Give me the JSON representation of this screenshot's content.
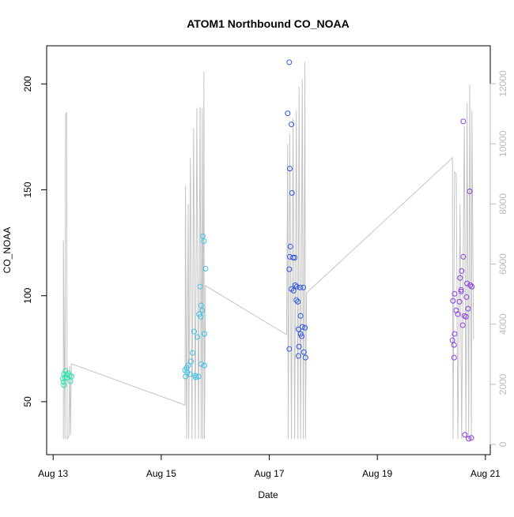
{
  "chart_data": {
    "type": "scatter",
    "title": "ATOM1 Northbound CO_NOAA",
    "xlabel": "Date",
    "ylabel": "CO_NOAA",
    "xlim": [
      12.88,
      21.09
    ],
    "xticks": [
      {
        "value": 13,
        "label": "Aug 13"
      },
      {
        "value": 15,
        "label": "Aug 15"
      },
      {
        "value": 17,
        "label": "Aug 17"
      },
      {
        "value": 19,
        "label": "Aug 19"
      },
      {
        "value": 21,
        "label": "Aug 21"
      }
    ],
    "ylim": [
      25,
      218
    ],
    "yticks": [
      50,
      100,
      150,
      200
    ],
    "y2lim": [
      -340,
      13260
    ],
    "y2ticks": [
      0,
      2000,
      4000,
      6000,
      8000,
      10000,
      12000
    ],
    "series": [
      {
        "style": "points",
        "color": "#2fe0ad",
        "x": [
          13.18,
          13.19,
          13.2,
          13.22,
          13.23,
          13.25,
          13.26,
          13.28,
          13.31,
          13.32,
          13.34,
          13.2
        ],
        "values": [
          60.8,
          59.3,
          63.0,
          61.5,
          64.5,
          61.2,
          62.6,
          63.4,
          62.3,
          59.7,
          61.9,
          57.8
        ]
      },
      {
        "style": "points",
        "color": "#3cc3e6",
        "x": [
          15.44,
          15.47,
          15.48,
          15.5,
          15.53,
          15.55,
          15.58,
          15.61,
          15.63,
          15.64,
          15.67,
          15.69,
          15.7,
          15.72,
          15.73,
          15.74,
          15.76,
          15.77,
          15.79,
          15.8,
          15.8,
          15.82,
          15.74,
          15.45
        ],
        "values": [
          64.9,
          66.0,
          63.8,
          67.1,
          63.0,
          69.0,
          73.0,
          83.1,
          62.3,
          61.5,
          80.5,
          61.9,
          91.3,
          104.3,
          90.1,
          95.4,
          93.1,
          128.1,
          125.8,
          82.0,
          67.1,
          112.8,
          67.8,
          61.9
        ]
      },
      {
        "style": "points",
        "color": "#2f55e0",
        "x": [
          17.34,
          17.37,
          17.38,
          17.41,
          17.42,
          17.37,
          17.37,
          17.38,
          17.39,
          17.41,
          17.44,
          17.47,
          17.48,
          17.5,
          17.51,
          17.53,
          17.54,
          17.55,
          17.57,
          17.58,
          17.58,
          17.6,
          17.61,
          17.63,
          17.66,
          17.67,
          17.64,
          17.54,
          17.45
        ],
        "values": [
          186.1,
          210.2,
          160.0,
          180.9,
          148.5,
          74.9,
          112.5,
          118.4,
          123.2,
          103.2,
          118.0,
          118.0,
          105.0,
          98.0,
          104.3,
          97.2,
          84.2,
          76.0,
          103.9,
          90.5,
          82.0,
          80.9,
          85.3,
          103.9,
          84.9,
          70.8,
          73.4,
          71.6,
          102.4
        ]
      },
      {
        "style": "points",
        "color": "#8a3de0",
        "x": [
          20.39,
          20.42,
          20.43,
          20.42,
          20.4,
          20.43,
          20.46,
          20.49,
          20.52,
          20.53,
          20.55,
          20.56,
          20.58,
          20.59,
          20.59,
          20.61,
          20.62,
          20.64,
          20.65,
          20.66,
          20.68,
          20.69,
          20.71,
          20.72,
          20.74,
          20.75,
          20.55
        ],
        "values": [
          79.0,
          76.8,
          82.0,
          70.8,
          97.6,
          100.9,
          93.1,
          91.3,
          97.2,
          108.4,
          102.0,
          111.7,
          86.1,
          118.4,
          182.3,
          90.5,
          34.4,
          90.1,
          99.4,
          105.8,
          93.9,
          32.5,
          149.3,
          105.0,
          32.9,
          104.3,
          102.8
        ]
      },
      {
        "style": "line",
        "axis": "y2",
        "color": "#c4c4c4",
        "x": [
          13.19,
          13.19,
          13.22,
          13.23,
          13.25,
          13.26,
          13.29,
          13.31,
          13.32,
          13.34,
          15.44,
          15.45,
          15.47,
          15.5,
          15.51,
          15.54,
          15.57,
          15.6,
          15.63,
          15.66,
          15.69,
          15.72,
          15.74,
          15.76,
          15.77,
          15.79,
          15.8,
          15.82,
          17.32,
          17.34,
          17.35,
          17.38,
          17.41,
          17.44,
          17.47,
          17.5,
          17.53,
          17.55,
          17.58,
          17.61,
          17.63,
          17.66,
          17.67,
          17.69,
          20.39,
          20.4,
          20.43,
          20.46,
          20.49,
          20.53,
          20.56,
          20.61,
          20.64,
          20.66,
          20.69,
          20.71,
          20.74,
          20.75,
          20.78
        ],
        "values": [
          180,
          6770,
          180,
          10970,
          11050,
          180,
          260,
          2600,
          310,
          2680,
          1310,
          8610,
          180,
          8000,
          180,
          9530,
          180,
          10520,
          180,
          11180,
          180,
          11230,
          180,
          11180,
          180,
          12410,
          180,
          5280,
          3650,
          10000,
          180,
          10320,
          180,
          10840,
          180,
          11100,
          180,
          11890,
          180,
          12150,
          180,
          12730,
          180,
          5040,
          9530,
          180,
          9060,
          9000,
          180,
          8000,
          180,
          10580,
          180,
          11360,
          180,
          11970,
          180,
          11100,
          3490
        ]
      }
    ]
  }
}
